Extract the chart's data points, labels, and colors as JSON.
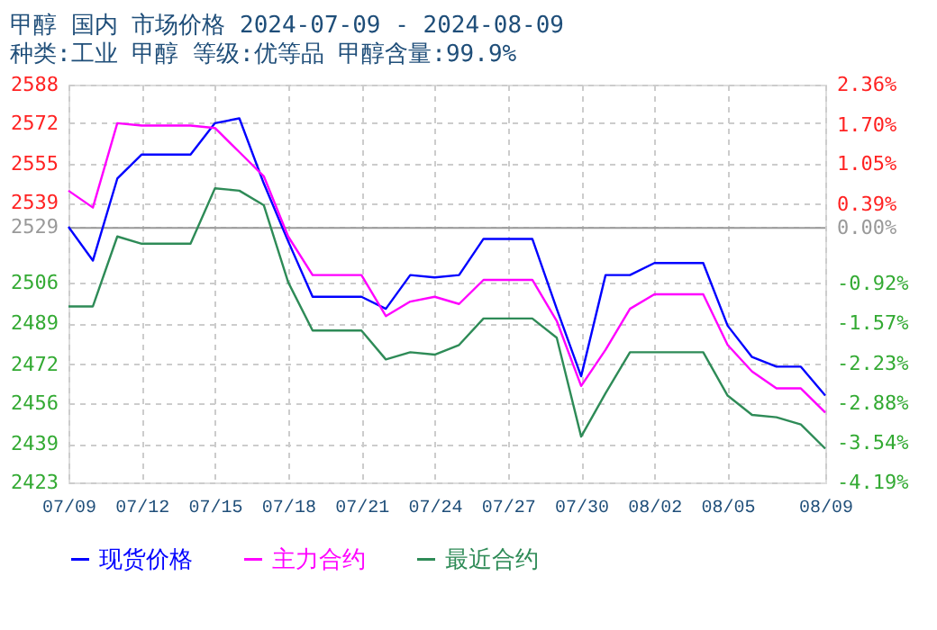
{
  "chart_data": {
    "type": "line",
    "title": "甲醇 国内 市场价格 2024-07-09 - 2024-08-09",
    "subtitle": "种类:工业 甲醇 等级:优等品 甲醇含量:99.9%",
    "x": [
      "2024-07-09",
      "2024-07-10",
      "2024-07-11",
      "2024-07-12",
      "2024-07-13",
      "2024-07-14",
      "2024-07-15",
      "2024-07-16",
      "2024-07-17",
      "2024-07-18",
      "2024-07-19",
      "2024-07-20",
      "2024-07-21",
      "2024-07-22",
      "2024-07-23",
      "2024-07-24",
      "2024-07-25",
      "2024-07-26",
      "2024-07-27",
      "2024-07-28",
      "2024-07-29",
      "2024-07-30",
      "2024-07-31",
      "2024-08-01",
      "2024-08-02",
      "2024-08-03",
      "2024-08-04",
      "2024-08-05",
      "2024-08-06",
      "2024-08-07",
      "2024-08-08",
      "2024-08-09"
    ],
    "series": [
      {
        "name": "现货价格",
        "color": "#0000ff",
        "values": [
          2529,
          2515,
          2549,
          2559,
          2559,
          2559,
          2572,
          2574,
          2547,
          2523,
          2500,
          2500,
          2500,
          2495,
          2509,
          2508,
          2509,
          2524,
          2524,
          2524,
          2495,
          2467,
          2509,
          2509,
          2514,
          2514,
          2514,
          2488,
          2475,
          2471,
          2471,
          2459
        ]
      },
      {
        "name": "主力合约",
        "color": "#ff00ff",
        "values": [
          2544,
          2537,
          2572,
          2571,
          2571,
          2571,
          2570,
          2560,
          2550,
          2525,
          2509,
          2509,
          2509,
          2492,
          2498,
          2500,
          2497,
          2507,
          2507,
          2507,
          2490,
          2463,
          2478,
          2495,
          2501,
          2501,
          2501,
          2480,
          2469,
          2462,
          2462,
          2452
        ]
      },
      {
        "name": "最近合约",
        "color": "#2e8b57",
        "values": [
          2496,
          2496,
          2525,
          2522,
          2522,
          2522,
          2545,
          2544,
          2538,
          2506,
          2486,
          2486,
          2486,
          2474,
          2477,
          2476,
          2480,
          2491,
          2491,
          2491,
          2483,
          2442,
          2460,
          2477,
          2477,
          2477,
          2477,
          2459,
          2451,
          2450,
          2447,
          2437
        ]
      }
    ],
    "xlim": [
      "2024-07-09",
      "2024-08-09"
    ],
    "xticks": [
      {
        "value": "2024-07-09",
        "label": "07/09"
      },
      {
        "value": "2024-07-12",
        "label": "07/12"
      },
      {
        "value": "2024-07-15",
        "label": "07/15"
      },
      {
        "value": "2024-07-18",
        "label": "07/18"
      },
      {
        "value": "2024-07-21",
        "label": "07/21"
      },
      {
        "value": "2024-07-24",
        "label": "07/24"
      },
      {
        "value": "2024-07-27",
        "label": "07/27"
      },
      {
        "value": "2024-07-30",
        "label": "07/30"
      },
      {
        "value": "2024-08-02",
        "label": "08/02"
      },
      {
        "value": "2024-08-05",
        "label": "08/05"
      },
      {
        "value": "2024-08-09",
        "label": "08/09"
      }
    ],
    "ylim": [
      2423,
      2588
    ],
    "yticks": [
      2423,
      2439,
      2456,
      2472,
      2489,
      2506,
      2529,
      2539,
      2555,
      2572,
      2588
    ],
    "y2lim": [
      -4.19,
      2.36
    ],
    "y2ticks": [
      {
        "value": -4.19,
        "label": "-4.19%"
      },
      {
        "value": -3.54,
        "label": "-3.54%"
      },
      {
        "value": -2.88,
        "label": "-2.88%"
      },
      {
        "value": -2.23,
        "label": "-2.23%"
      },
      {
        "value": -1.57,
        "label": "-1.57%"
      },
      {
        "value": -0.92,
        "label": "-0.92%"
      },
      {
        "value": 0,
        "label": "0.00%"
      },
      {
        "value": 0.39,
        "label": "0.39%"
      },
      {
        "value": 1.05,
        "label": "1.05%"
      },
      {
        "value": 1.7,
        "label": "1.70%"
      },
      {
        "value": 2.36,
        "label": "2.36%"
      }
    ],
    "ref_lines": [
      {
        "axis": "y2",
        "value": 0,
        "color": "#999999"
      }
    ],
    "grid": true,
    "legend": "bottom",
    "marker": "none",
    "line_style": "solid"
  }
}
